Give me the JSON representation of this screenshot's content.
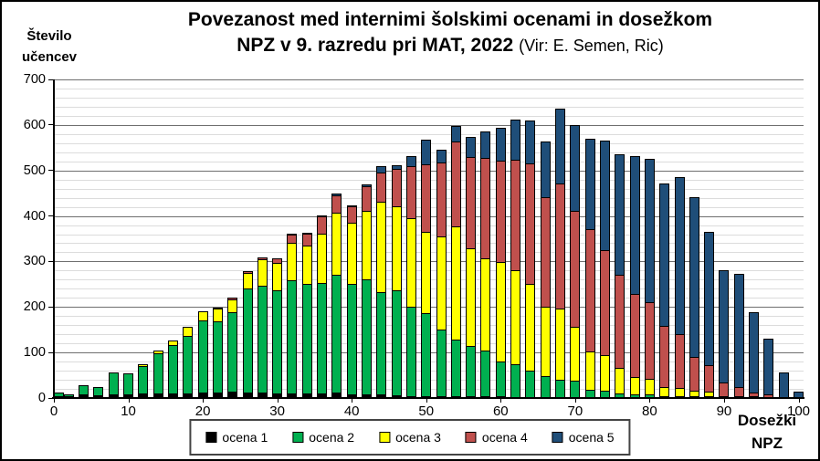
{
  "header": {
    "ylabel_line1": "Število",
    "ylabel_line2": "učencev",
    "title_line1": "Povezanost med internimi šolskimi ocenami in dosežkom",
    "title_line2_bold": "NPZ v 9. razredu pri MAT, 2022",
    "title_line2_normal": "(Vir: E. Semen, Ric)"
  },
  "xlabel": {
    "line1": "Dosežki",
    "line2": "NPZ"
  },
  "legend": [
    {
      "label": "ocena 1",
      "color": "#000000"
    },
    {
      "label": "ocena 2",
      "color": "#00B050"
    },
    {
      "label": "ocena 3",
      "color": "#FFFF00"
    },
    {
      "label": "ocena 4",
      "color": "#C0504D"
    },
    {
      "label": "ocena 5",
      "color": "#1F4E79"
    }
  ],
  "chart_data": {
    "type": "bar",
    "stacked": true,
    "title": "Povezanost med internimi šolskimi ocenami in dosežkom NPZ v 9. razredu pri MAT, 2022 (Vir: E. Semen, Ric)",
    "xlabel": "Dosežki NPZ",
    "ylabel": "Število učencev",
    "xlim": [
      0,
      100
    ],
    "ylim": [
      0,
      700
    ],
    "x_ticks": [
      0,
      10,
      20,
      30,
      40,
      50,
      60,
      70,
      80,
      90,
      100
    ],
    "y_ticks": [
      0,
      100,
      200,
      300,
      400,
      500,
      600,
      700
    ],
    "minor_grid_step": 20,
    "grid": true,
    "legend_position": "bottom",
    "bar_x_step": 2,
    "x": [
      0,
      2,
      4,
      6,
      8,
      10,
      12,
      14,
      16,
      18,
      20,
      22,
      24,
      26,
      28,
      30,
      32,
      34,
      36,
      38,
      40,
      42,
      44,
      46,
      48,
      50,
      52,
      54,
      56,
      58,
      60,
      62,
      64,
      66,
      68,
      70,
      72,
      74,
      76,
      78,
      80,
      82,
      84,
      86,
      88,
      90,
      92,
      94,
      96,
      98,
      100
    ],
    "series_colors": [
      "#000000",
      "#00B050",
      "#FFFF00",
      "#C0504D",
      "#1F4E79"
    ],
    "series": [
      {
        "name": "ocena 1",
        "values": [
          3,
          2,
          8,
          7,
          9,
          8,
          10,
          10,
          10,
          10,
          12,
          12,
          15,
          12,
          12,
          10,
          10,
          10,
          10,
          12,
          8,
          8,
          8,
          6,
          5,
          5,
          4,
          3,
          3,
          2,
          2,
          0,
          0,
          0,
          0,
          0,
          0,
          0,
          0,
          0,
          0,
          0,
          0,
          0,
          0,
          0,
          0,
          0,
          0,
          0,
          0
        ]
      },
      {
        "name": "ocena 2",
        "values": [
          10,
          7,
          22,
          20,
          49,
          49,
          62,
          90,
          108,
          128,
          160,
          158,
          175,
          230,
          236,
          228,
          250,
          242,
          245,
          260,
          244,
          254,
          227,
          233,
          197,
          183,
          148,
          127,
          112,
          103,
          78,
          75,
          60,
          48,
          41,
          38,
          18,
          16,
          11,
          8,
          8,
          5,
          5,
          3,
          3,
          0,
          0,
          0,
          0,
          0,
          0
        ]
      },
      {
        "name": "ocena 3",
        "values": [
          0,
          0,
          0,
          0,
          0,
          0,
          6,
          8,
          12,
          22,
          23,
          30,
          30,
          37,
          61,
          62,
          85,
          88,
          110,
          140,
          137,
          153,
          200,
          186,
          198,
          182,
          208,
          250,
          217,
          204,
          220,
          207,
          192,
          154,
          157,
          120,
          87,
          80,
          57,
          40,
          37,
          22,
          20,
          15,
          12,
          5,
          3,
          2,
          0,
          0,
          0
        ]
      },
      {
        "name": "ocena 4",
        "values": [
          0,
          0,
          0,
          0,
          0,
          0,
          0,
          0,
          0,
          0,
          0,
          2,
          6,
          6,
          6,
          13,
          20,
          28,
          40,
          39,
          38,
          56,
          66,
          85,
          115,
          150,
          163,
          188,
          203,
          222,
          226,
          246,
          268,
          243,
          278,
          258,
          270,
          233,
          207,
          184,
          170,
          135,
          119,
          76,
          60,
          31,
          22,
          11,
          8,
          0,
          0
        ]
      },
      {
        "name": "ocena 5",
        "values": [
          0,
          0,
          0,
          0,
          0,
          0,
          0,
          0,
          0,
          0,
          0,
          0,
          0,
          0,
          0,
          0,
          4,
          3,
          5,
          6,
          3,
          7,
          16,
          10,
          25,
          55,
          30,
          37,
          45,
          61,
          74,
          89,
          95,
          125,
          165,
          190,
          201,
          243,
          267,
          305,
          317,
          315,
          348,
          352,
          296,
          249,
          250,
          177,
          125,
          57,
          14
        ]
      }
    ]
  }
}
